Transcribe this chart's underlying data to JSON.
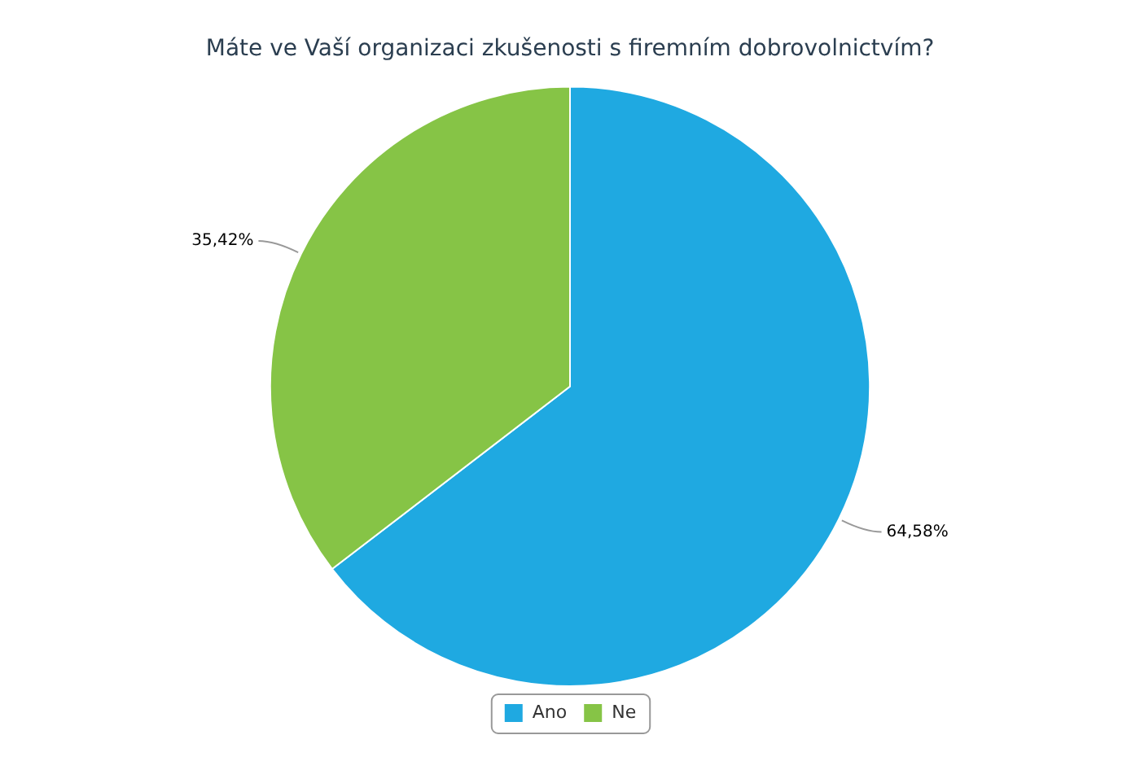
{
  "chart_data": {
    "type": "pie",
    "title": "Máte ve Vaší organizaci zkušenosti s firemním dobrovolnictvím?",
    "categories": [
      "Ano",
      "Ne"
    ],
    "values": [
      64.58,
      35.42
    ],
    "colors": [
      "#1fa9e1",
      "#86c446"
    ],
    "value_labels": [
      "64,58%",
      "35,42%"
    ],
    "legend": "bottom"
  }
}
